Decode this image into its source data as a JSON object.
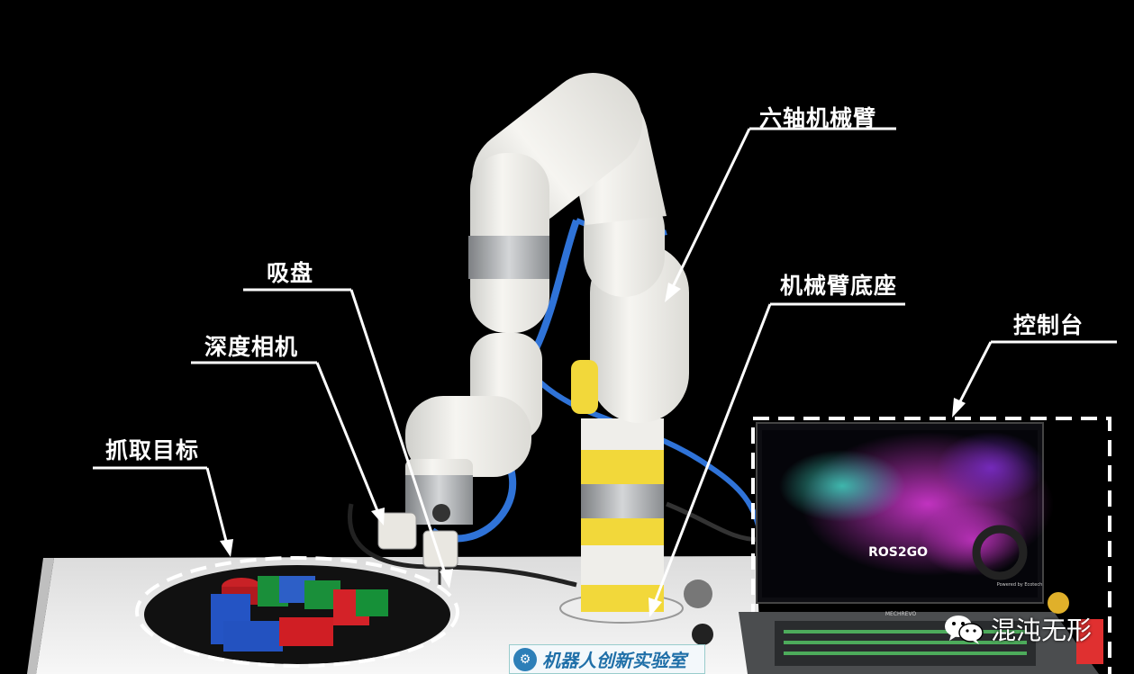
{
  "labels": {
    "six_axis_arm": "六轴机械臂",
    "arm_base": "机械臂底座",
    "console": "控制台",
    "suction_cup": "吸盘",
    "depth_camera": "深度相机",
    "grab_target": "抓取目标"
  },
  "screen": {
    "brand": "ROS2GO",
    "tagline": "Powered by Ecotech"
  },
  "laptop_brand": "MECHREVO",
  "lab_logo": {
    "text": "机器人创新实验室"
  },
  "watermark": {
    "text": "混沌无形",
    "icon": "wechat-icon"
  },
  "colors": {
    "background": "#000000",
    "arm": "#f1f0ec",
    "tape_yellow": "#f2d83a",
    "tape_silver": "#a8aaac",
    "cable_blue": "#2f73d8",
    "table": "#f5f5f5"
  }
}
